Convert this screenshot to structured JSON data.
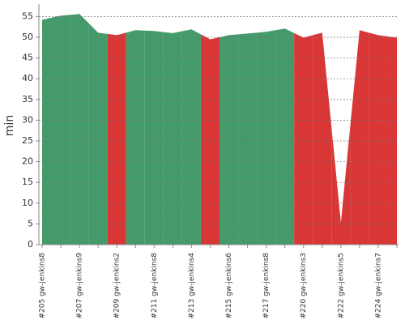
{
  "chart_data": {
    "type": "area",
    "y_label": "min",
    "categories": [
      "#205 gw-jenkins8",
      null,
      "#207 gw-jenkins9",
      null,
      "#209 gw-jenkins2",
      null,
      "#211 gw-jenkins8",
      null,
      "#213 gw-jenkins4",
      null,
      "#215 gw-jenkins6",
      null,
      "#217 gw-jenkins8",
      null,
      "#220 gw-jenkins3",
      null,
      "#222 gw-jenkins5",
      null,
      "#224 gw-jenkins7",
      null
    ],
    "values": [
      54.2,
      55.2,
      55.6,
      51.1,
      50.5,
      51.7,
      51.5,
      51.0,
      51.9,
      49.5,
      50.5,
      50.9,
      51.3,
      52.1,
      49.9,
      51.1,
      5.3,
      51.7,
      50.5,
      49.9
    ],
    "point_colors": [
      "#449a6a",
      "#449a6a",
      "#449a6a",
      "#449a6a",
      "#d93636",
      "#449a6a",
      "#449a6a",
      "#449a6a",
      "#449a6a",
      "#d93636",
      "#449a6a",
      "#449a6a",
      "#449a6a",
      "#449a6a",
      "#d93636",
      "#d93636",
      "#d93636",
      "#d93636",
      "#d93636",
      "#d93636"
    ],
    "ylim": [
      0,
      58
    ],
    "yticks": [
      0,
      5,
      10,
      15,
      20,
      25,
      30,
      35,
      40,
      45,
      50,
      55
    ],
    "grid": true
  }
}
